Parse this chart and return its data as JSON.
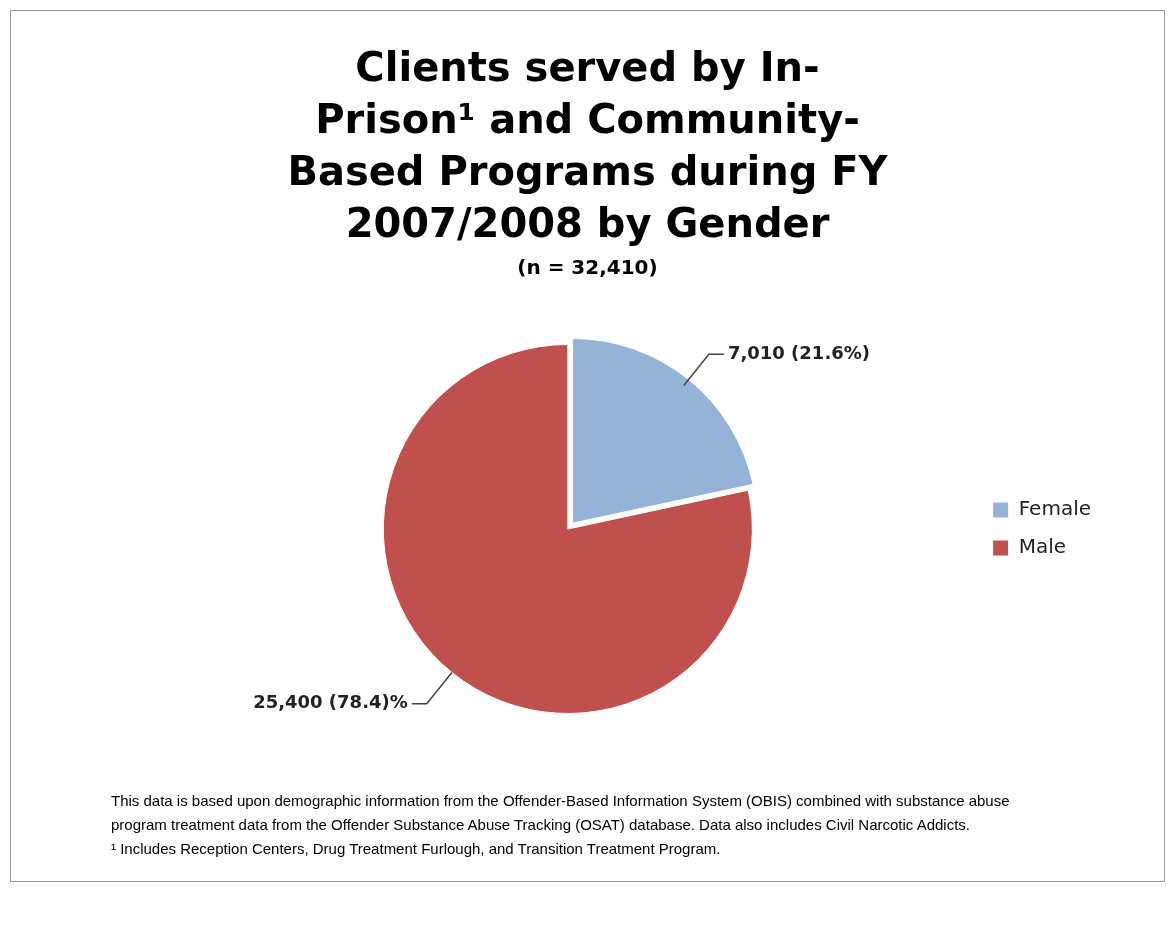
{
  "chart_data": {
    "type": "pie",
    "title": "Clients served by In-Prison¹ and Community-Based Programs during FY 2007/2008 by Gender",
    "subtitle": "(n = 32,410)",
    "categories": [
      "Female",
      "Male"
    ],
    "values": [
      7010,
      25400
    ],
    "colors": [
      "#95b3d7",
      "#c0504d"
    ],
    "value_labels": [
      "7,010 (21.6%)",
      "25,400 (78.4)%"
    ],
    "legend": "right",
    "annotations": [
      "This data is based upon demographic information from the Offender-Based Information System (OBIS) combined with  substance abuse program treatment data from the Offender Substance Abuse Tracking (OSAT) database.   Data also includes Civil Narcotic Addicts.",
      "¹ Includes Reception Centers, Drug Treatment Furlough, and Transition Treatment Program."
    ]
  }
}
